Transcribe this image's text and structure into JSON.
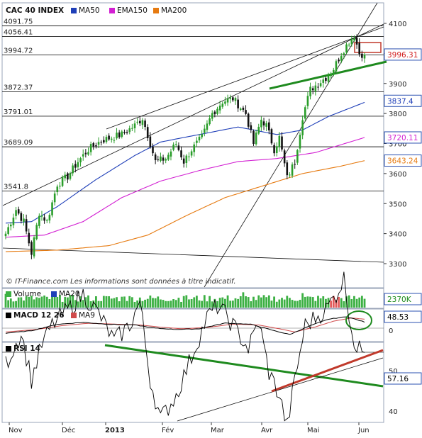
{
  "colors": {
    "up": "#2a9d2a",
    "down": "#111111",
    "ma50": "#1f3fb8",
    "ema150": "#d21fd2",
    "ma200": "#e67a10",
    "trend": "#1e8a1e",
    "resist": "#c0392b",
    "volume": "#3cb043",
    "volume_high": "#e35a5a",
    "macd": "#000000",
    "ma9": "#d04a4a",
    "frame": "#9aa4b8",
    "label_box": "#2b50b0"
  },
  "chart_data": [
    {
      "type": "candlestick",
      "panel": "price",
      "title": "CAC 40 INDEX",
      "legend": [
        {
          "name": "MA50",
          "color": "#1f3fb8"
        },
        {
          "name": "EMA150",
          "color": "#d21fd2"
        },
        {
          "name": "MA200",
          "color": "#e67a10"
        }
      ],
      "ylim": [
        3280,
        4110
      ],
      "yticks": [
        3300,
        3400,
        3500,
        3600,
        3700,
        3800,
        3900,
        4000,
        4100
      ],
      "levels": [
        4091.75,
        4056.41,
        3994.72,
        3872.37,
        3791.01,
        3689.09,
        3541.8
      ],
      "level_labels": [
        "4091.75",
        "4056.41",
        "3994.72",
        "3872.37",
        "3791.01",
        "3689.09",
        "3541.8"
      ],
      "last_values": [
        {
          "label": "3996.31",
          "value": 3996.31,
          "color": "#d21f1f"
        },
        {
          "label": "3837.4",
          "value": 3837.4,
          "color": "#1f3fb8"
        },
        {
          "label": "3720.11",
          "value": 3720.11,
          "color": "#d21fd2"
        },
        {
          "label": "3643.24",
          "value": 3643.24,
          "color": "#e67a10"
        }
      ],
      "close_anchors": [
        [
          0,
          3400
        ],
        [
          4,
          3480
        ],
        [
          7,
          3440
        ],
        [
          10,
          3335
        ],
        [
          13,
          3470
        ],
        [
          16,
          3440
        ],
        [
          20,
          3565
        ],
        [
          24,
          3590
        ],
        [
          28,
          3640
        ],
        [
          32,
          3680
        ],
        [
          37,
          3710
        ],
        [
          41,
          3720
        ],
        [
          45,
          3730
        ],
        [
          50,
          3760
        ],
        [
          53,
          3785
        ],
        [
          56,
          3700
        ],
        [
          58,
          3640
        ],
        [
          62,
          3650
        ],
        [
          66,
          3700
        ],
        [
          69,
          3640
        ],
        [
          72,
          3680
        ],
        [
          76,
          3720
        ],
        [
          80,
          3800
        ],
        [
          84,
          3840
        ],
        [
          88,
          3850
        ],
        [
          90,
          3830
        ],
        [
          93,
          3800
        ],
        [
          96,
          3700
        ],
        [
          99,
          3780
        ],
        [
          101,
          3760
        ],
        [
          104,
          3680
        ],
        [
          106,
          3720
        ],
        [
          109,
          3585
        ],
        [
          112,
          3640
        ],
        [
          115,
          3790
        ],
        [
          118,
          3880
        ],
        [
          121,
          3900
        ],
        [
          124,
          3920
        ],
        [
          127,
          3950
        ],
        [
          130,
          4000
        ],
        [
          133,
          4040
        ],
        [
          135,
          4060
        ],
        [
          137,
          4000
        ],
        [
          139,
          3996
        ]
      ],
      "annotation": "© IT-Finance.com     Les informations sont données à titre indicatif."
    },
    {
      "type": "bar",
      "panel": "volume",
      "legend": [
        {
          "name": "Volume",
          "color": "#3cb043"
        },
        {
          "name": "MA20",
          "color": "#1f3fb8"
        }
      ],
      "last_label": "2370K"
    },
    {
      "type": "line",
      "panel": "macd",
      "legend": [
        {
          "name": "MACD 12 26",
          "color": "#000000"
        },
        {
          "name": "MA9",
          "color": "#d04a4a"
        }
      ],
      "yticks": [
        0
      ],
      "last_label": "48.53"
    },
    {
      "type": "line",
      "panel": "rsi",
      "legend": [
        {
          "name": "RSI 14",
          "color": "#000000"
        }
      ],
      "ylim": [
        30,
        85
      ],
      "yticks": [
        40,
        50
      ],
      "last_label": "57.16",
      "tick_labels_shown": [
        "50",
        "40"
      ]
    }
  ],
  "x_axis": {
    "labels": [
      "Nov",
      "Déc",
      "2013",
      "Fév",
      "Mar",
      "Avr",
      "Mai",
      "Jun"
    ],
    "bold": [
      false,
      false,
      true,
      false,
      false,
      false,
      false,
      false
    ]
  }
}
